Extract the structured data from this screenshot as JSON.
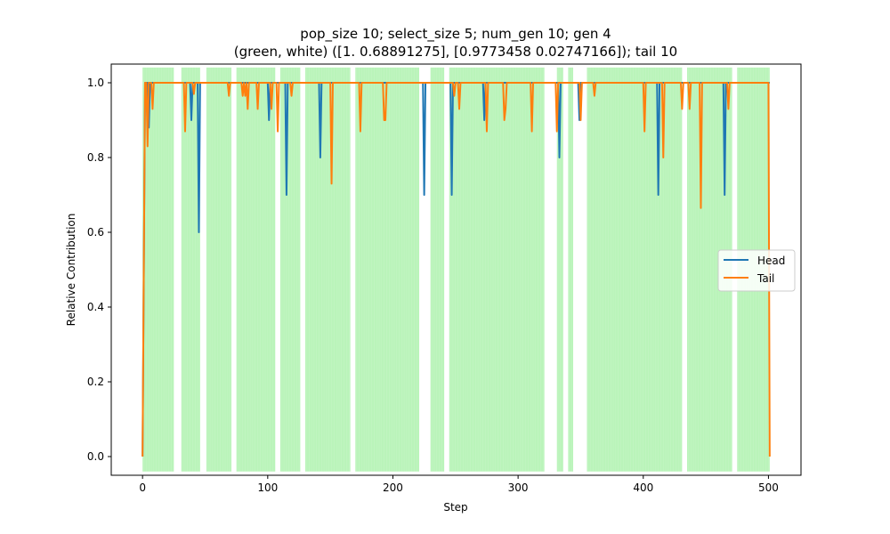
{
  "chart_data": {
    "type": "line",
    "title_line1": "pop_size 10; select_size 5; num_gen 10; gen 4",
    "title_line2": "(green, white) ([1.         0.68891275], [0.9773458  0.02747166]); tail 10",
    "xlabel": "Step",
    "ylabel": "Relative Contribution",
    "xlim": [
      -25,
      526
    ],
    "ylim": [
      -0.05,
      1.05
    ],
    "x_ticks": [
      0,
      100,
      200,
      300,
      400,
      500
    ],
    "x_tick_labels": [
      "0",
      "100",
      "200",
      "300",
      "400",
      "500"
    ],
    "y_ticks": [
      0.0,
      0.2,
      0.4,
      0.6,
      0.8,
      1.0
    ],
    "y_tick_labels": [
      "0.0",
      "0.2",
      "0.4",
      "0.6",
      "0.8",
      "1.0"
    ],
    "legend_position": "center-right",
    "grid": false,
    "shaded_regions_color": "#90EE90",
    "shaded_regions": [
      [
        0,
        25
      ],
      [
        31,
        46
      ],
      [
        51,
        71
      ],
      [
        75,
        106
      ],
      [
        110,
        126
      ],
      [
        130,
        166
      ],
      [
        170,
        221
      ],
      [
        230,
        241
      ],
      [
        245,
        321
      ],
      [
        331,
        336
      ],
      [
        340,
        344
      ],
      [
        355,
        431
      ],
      [
        435,
        471
      ],
      [
        475,
        501
      ]
    ],
    "series": [
      {
        "name": "Head",
        "color": "#1f77b4",
        "x": [
          0,
          2,
          4,
          5,
          6,
          7,
          9,
          10,
          38,
          39,
          40,
          44,
          45,
          46,
          100,
          101,
          102,
          114,
          115,
          116,
          141,
          142,
          143,
          224,
          225,
          226,
          246,
          247,
          248,
          272,
          273,
          274,
          332,
          333,
          334,
          348,
          349,
          350,
          411,
          412,
          413,
          464,
          465,
          466,
          500,
          501
        ],
        "y": [
          0.0,
          1.0,
          1.0,
          0.88,
          1.0,
          1.0,
          1.0,
          1.0,
          1.0,
          0.9,
          1.0,
          1.0,
          0.6,
          1.0,
          1.0,
          0.9,
          1.0,
          1.0,
          0.7,
          1.0,
          1.0,
          0.8,
          1.0,
          1.0,
          0.7,
          1.0,
          1.0,
          0.7,
          1.0,
          1.0,
          0.9,
          1.0,
          1.0,
          0.8,
          1.0,
          1.0,
          0.9,
          1.0,
          1.0,
          0.7,
          1.0,
          1.0,
          0.7,
          1.0,
          1.0,
          1.0
        ]
      },
      {
        "name": "Tail",
        "color": "#ff7f0e",
        "x": [
          0,
          2,
          3,
          4,
          5,
          7,
          8,
          9,
          33,
          34,
          35,
          40,
          41,
          42,
          68,
          69,
          70,
          79,
          80,
          81,
          82,
          83,
          84,
          85,
          86,
          91,
          92,
          93,
          102,
          103,
          104,
          107,
          108,
          109,
          118,
          119,
          120,
          150,
          151,
          152,
          173,
          174,
          175,
          192,
          193,
          194,
          195,
          248,
          249,
          250,
          252,
          253,
          254,
          274,
          275,
          276,
          288,
          289,
          290,
          291,
          310,
          311,
          312,
          330,
          331,
          332,
          349,
          350,
          351,
          360,
          361,
          362,
          400,
          401,
          402,
          415,
          416,
          417,
          430,
          431,
          432,
          436,
          437,
          438,
          445,
          446,
          447,
          467,
          468,
          469,
          500,
          501
        ],
        "y": [
          0.0,
          1.0,
          1.0,
          0.83,
          1.0,
          1.0,
          0.93,
          1.0,
          1.0,
          0.87,
          1.0,
          1.0,
          0.97,
          1.0,
          1.0,
          0.965,
          1.0,
          1.0,
          0.965,
          1.0,
          0.965,
          1.0,
          0.93,
          1.0,
          1.0,
          1.0,
          0.93,
          1.0,
          1.0,
          0.93,
          1.0,
          1.0,
          0.87,
          1.0,
          1.0,
          0.965,
          1.0,
          1.0,
          0.73,
          1.0,
          1.0,
          0.87,
          1.0,
          1.0,
          0.9,
          0.9,
          1.0,
          1.0,
          0.965,
          1.0,
          1.0,
          0.93,
          1.0,
          1.0,
          0.87,
          1.0,
          1.0,
          0.9,
          0.93,
          1.0,
          1.0,
          0.87,
          1.0,
          1.0,
          0.87,
          1.0,
          1.0,
          0.9,
          1.0,
          1.0,
          0.965,
          1.0,
          1.0,
          0.87,
          1.0,
          1.0,
          0.8,
          1.0,
          1.0,
          0.93,
          1.0,
          1.0,
          0.93,
          1.0,
          1.0,
          0.665,
          1.0,
          1.0,
          0.93,
          1.0,
          1.0,
          0.0
        ]
      }
    ]
  }
}
